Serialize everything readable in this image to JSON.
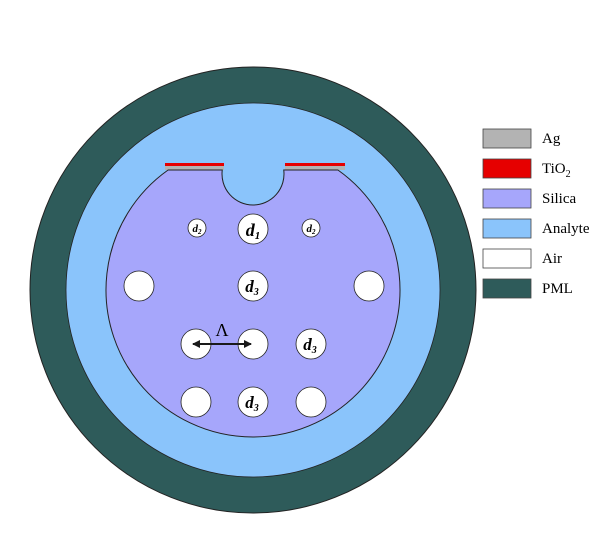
{
  "colors": {
    "pml": "#2e5b5a",
    "analyte": "#8ac4fb",
    "silica": "#a6a6fb",
    "air": "#ffffff",
    "silver": "#b3b3b3",
    "tio2": "#e60000",
    "outline": "#222222"
  },
  "labels": {
    "d1": "d1",
    "d2": "d2",
    "d3": "d3",
    "pitch": "Λ"
  },
  "legend": [
    {
      "key": "silver",
      "text": "Ag"
    },
    {
      "key": "tio2",
      "text": "TiO2"
    },
    {
      "key": "silica",
      "text": "Silica"
    },
    {
      "key": "analyte",
      "text": "Analyte"
    },
    {
      "key": "air",
      "text": "Air"
    },
    {
      "key": "pml",
      "text": "PML"
    }
  ]
}
